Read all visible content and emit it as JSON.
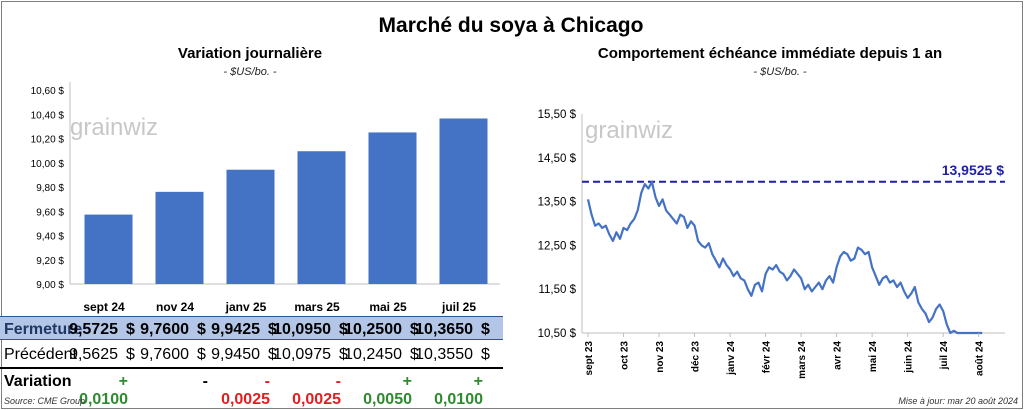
{
  "title": "Marché du soya à Chicago",
  "left": {
    "subtitle": "Variation  journalière",
    "unit": "- $US/bo. -",
    "watermark": "grainwiz",
    "months": [
      "sept 24",
      "nov 24",
      "janv 25",
      "mars 25",
      "mai 25",
      "juil 25"
    ],
    "fermeture_label": "Fermeture",
    "fermeture": [
      "9,5725",
      "9,7600",
      "9,9425",
      "10,0950",
      "10,2500",
      "10,3650"
    ],
    "precedent_label": "Précédent",
    "precedent": [
      "9,5625",
      "9,7600",
      "9,9450",
      "10,0975",
      "10,2450",
      "10,3550"
    ],
    "variation_label": "Variation",
    "variation": [
      "+ 0,0100",
      "-",
      "- 0,0025",
      "- 0,0025",
      "+ 0,0050",
      "+ 0,0100"
    ],
    "currency": "$"
  },
  "right": {
    "subtitle": "Comportement  échéance immédiate depuis 1 an",
    "unit": "- $US/bo. -",
    "watermark": "grainwiz",
    "reference_label": "13,9525  $"
  },
  "source": "Source: CME Group",
  "update": "Mise à jour: mar 20 août 2024",
  "colors": {
    "bar": "#4472c4",
    "line": "#4472c4",
    "reference": "#1f1fa8",
    "positive": "#2e8b2e",
    "negative": "#e02020"
  },
  "chart_data": [
    {
      "type": "bar",
      "title": "Variation  journalière",
      "categories": [
        "sept 24",
        "nov 24",
        "janv 25",
        "mars 25",
        "mai 25",
        "juil 25"
      ],
      "values": [
        9.5725,
        9.76,
        9.9425,
        10.095,
        10.25,
        10.365
      ],
      "ylim": [
        9.0,
        10.6
      ],
      "yticks": [
        "9,00 $",
        "9,20 $",
        "9,40 $",
        "9,60 $",
        "9,80 $",
        "10,00 $",
        "10,20 $",
        "10,40 $",
        "10,60 $"
      ],
      "grid": false
    },
    {
      "type": "line",
      "title": "Comportement  échéance immédiate depuis 1 an",
      "xlabels": [
        "sept 23",
        "oct 23",
        "nov 23",
        "déc 23",
        "janv 24",
        "févr 24",
        "mars 24",
        "avr 24",
        "mai 24",
        "juin 24",
        "juil 24",
        "août 24"
      ],
      "ylim": [
        10.5,
        15.5
      ],
      "yticks": [
        "10,50 $",
        "11,50 $",
        "12,50 $",
        "13,50 $",
        "14,50 $",
        "15,50 $"
      ],
      "reference": 13.9525,
      "x_month_index": [
        0,
        0.1,
        0.2,
        0.3,
        0.4,
        0.5,
        0.6,
        0.7,
        0.8,
        0.9,
        1,
        1.1,
        1.2,
        1.3,
        1.4,
        1.5,
        1.6,
        1.7,
        1.8,
        1.9,
        2,
        2.1,
        2.2,
        2.3,
        2.4,
        2.5,
        2.6,
        2.7,
        2.8,
        2.9,
        3,
        3.1,
        3.2,
        3.3,
        3.4,
        3.5,
        3.6,
        3.7,
        3.8,
        3.9,
        4,
        4.1,
        4.2,
        4.3,
        4.4,
        4.5,
        4.6,
        4.7,
        4.8,
        4.9,
        5,
        5.1,
        5.2,
        5.3,
        5.4,
        5.5,
        5.6,
        5.7,
        5.8,
        5.9,
        6,
        6.1,
        6.2,
        6.3,
        6.4,
        6.5,
        6.6,
        6.7,
        6.8,
        6.9,
        7,
        7.1,
        7.2,
        7.3,
        7.4,
        7.5,
        7.6,
        7.7,
        7.8,
        7.9,
        8,
        8.1,
        8.2,
        8.3,
        8.4,
        8.5,
        8.6,
        8.7,
        8.8,
        8.9,
        9,
        9.1,
        9.2,
        9.3,
        9.4,
        9.5,
        9.6,
        9.7,
        9.8,
        9.9,
        10,
        10.1,
        10.2,
        10.3,
        10.4,
        10.5,
        10.6,
        10.7,
        10.8,
        10.9,
        11,
        11.1
      ],
      "y": [
        13.55,
        13.2,
        12.95,
        13.0,
        12.9,
        12.95,
        12.75,
        12.6,
        12.8,
        12.65,
        12.9,
        12.85,
        13.0,
        13.1,
        13.3,
        13.7,
        13.9,
        13.8,
        13.95,
        13.6,
        13.4,
        13.55,
        13.3,
        13.2,
        13.1,
        13.0,
        13.2,
        13.15,
        12.9,
        13.05,
        12.95,
        12.6,
        12.5,
        12.45,
        12.55,
        12.3,
        12.15,
        12.0,
        12.2,
        12.05,
        11.95,
        11.8,
        11.9,
        11.75,
        11.7,
        11.5,
        11.35,
        11.6,
        11.65,
        11.45,
        11.85,
        12.0,
        11.95,
        12.05,
        11.9,
        11.85,
        11.7,
        11.8,
        11.95,
        11.85,
        11.75,
        11.5,
        11.6,
        11.45,
        11.55,
        11.65,
        11.5,
        11.7,
        11.8,
        11.65,
        12.0,
        12.25,
        12.35,
        12.3,
        12.15,
        12.2,
        12.45,
        12.4,
        12.3,
        12.35,
        12.0,
        11.8,
        11.6,
        11.75,
        11.8,
        11.65,
        11.7,
        11.55,
        11.65,
        11.45,
        11.3,
        11.4,
        11.55,
        11.2,
        11.05,
        10.95,
        10.75,
        10.85,
        11.05,
        11.15,
        11.0,
        10.7,
        10.5,
        10.55,
        10.5,
        10.5,
        10.5,
        10.5,
        10.5,
        10.5,
        10.5,
        10.5
      ]
    }
  ]
}
